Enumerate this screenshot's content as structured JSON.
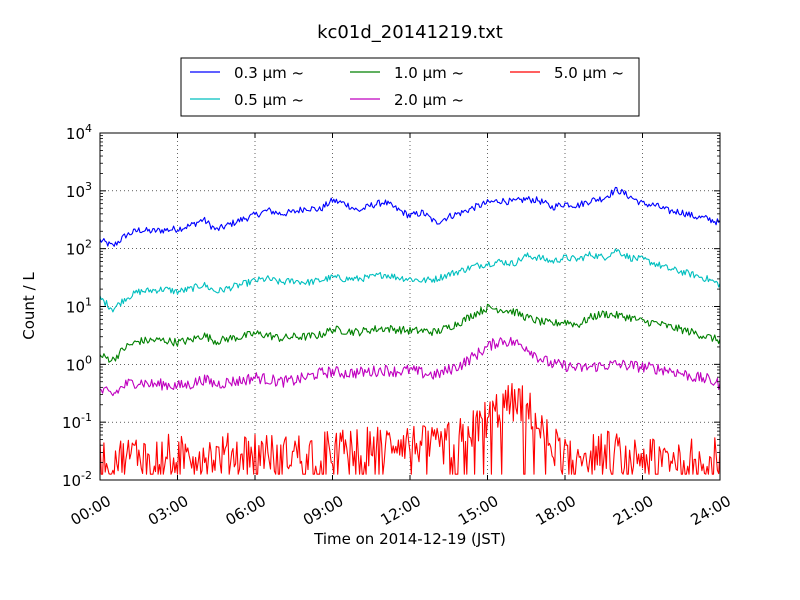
{
  "chart_data": {
    "type": "line",
    "title": "kc01d_20141219.txt",
    "xlabel": "Time on 2014-12-19 (JST)",
    "ylabel": "Count / L",
    "yscale": "log",
    "ylim": [
      0.01,
      10000
    ],
    "xlim": [
      "00:00",
      "24:00"
    ],
    "grid": true,
    "legend_position": "top-center",
    "x_ticks": [
      "00:00",
      "03:00",
      "06:00",
      "09:00",
      "12:00",
      "15:00",
      "18:00",
      "21:00",
      "24:00"
    ],
    "y_ticks": [
      {
        "base": "10",
        "exp": "-2",
        "value": 0.01
      },
      {
        "base": "10",
        "exp": "-1",
        "value": 0.1
      },
      {
        "base": "10",
        "exp": "0",
        "value": 1
      },
      {
        "base": "10",
        "exp": "1",
        "value": 10
      },
      {
        "base": "10",
        "exp": "2",
        "value": 100
      },
      {
        "base": "10",
        "exp": "3",
        "value": 1000
      },
      {
        "base": "10",
        "exp": "4",
        "value": 10000
      }
    ],
    "x_hours": [
      0,
      0.5,
      1,
      1.5,
      2,
      2.5,
      3,
      3.5,
      4,
      4.5,
      5,
      5.5,
      6,
      6.5,
      7,
      7.5,
      8,
      8.5,
      9,
      9.5,
      10,
      10.5,
      11,
      11.5,
      12,
      12.5,
      13,
      13.5,
      14,
      14.5,
      15,
      15.5,
      16,
      16.5,
      17,
      17.5,
      18,
      18.5,
      19,
      19.5,
      20,
      20.5,
      21,
      21.5,
      22,
      22.5,
      23,
      23.5,
      24
    ],
    "series": [
      {
        "name": "0.3 μm ~",
        "color": "#0000ff",
        "noise": 0.06,
        "values": [
          140,
          110,
          170,
          210,
          200,
          210,
          220,
          250,
          320,
          210,
          260,
          320,
          380,
          460,
          400,
          430,
          510,
          470,
          680,
          600,
          450,
          560,
          640,
          480,
          370,
          420,
          280,
          360,
          420,
          520,
          620,
          680,
          640,
          720,
          680,
          520,
          600,
          560,
          680,
          750,
          1050,
          800,
          600,
          560,
          450,
          430,
          360,
          330,
          280
        ]
      },
      {
        "name": "0.5 μm ~",
        "color": "#00bfbf",
        "noise": 0.06,
        "values": [
          14,
          9,
          14,
          18,
          19,
          20,
          18,
          20,
          24,
          18,
          21,
          24,
          28,
          30,
          26,
          28,
          26,
          28,
          32,
          30,
          30,
          32,
          36,
          32,
          30,
          28,
          30,
          36,
          42,
          50,
          55,
          60,
          55,
          75,
          70,
          60,
          70,
          65,
          80,
          70,
          95,
          70,
          65,
          55,
          45,
          40,
          35,
          30,
          24
        ]
      },
      {
        "name": "1.0 μm ~",
        "color": "#008000",
        "noise": 0.07,
        "values": [
          1.4,
          1.2,
          2.0,
          2.5,
          2.6,
          2.6,
          2.4,
          2.6,
          3.2,
          2.5,
          2.8,
          3.0,
          3.4,
          3.2,
          2.8,
          3.0,
          3.0,
          3.2,
          4.0,
          3.8,
          3.6,
          4.0,
          4.2,
          4.0,
          3.8,
          3.8,
          3.6,
          4.4,
          5.5,
          7.5,
          9.5,
          9.0,
          8.2,
          6.5,
          5.5,
          5.0,
          5.5,
          4.8,
          6.5,
          7.5,
          7.0,
          6.5,
          5.5,
          5.2,
          4.5,
          4.0,
          3.5,
          3.0,
          2.6
        ]
      },
      {
        "name": "2.0 μm ~",
        "color": "#bf00bf",
        "noise": 0.1,
        "values": [
          0.35,
          0.3,
          0.45,
          0.5,
          0.45,
          0.45,
          0.42,
          0.45,
          0.55,
          0.45,
          0.5,
          0.52,
          0.6,
          0.55,
          0.5,
          0.52,
          0.6,
          0.7,
          0.75,
          0.7,
          0.72,
          0.75,
          0.8,
          0.75,
          0.8,
          0.7,
          0.65,
          0.8,
          1.0,
          1.4,
          2.0,
          2.6,
          2.4,
          2.0,
          1.3,
          1.0,
          0.95,
          0.85,
          0.9,
          0.95,
          1.0,
          0.95,
          0.9,
          0.85,
          0.8,
          0.7,
          0.6,
          0.55,
          0.45
        ]
      },
      {
        "name": "5.0 μm ~",
        "color": "#ff0000",
        "noise": 0.35,
        "floor": 0.0126,
        "values": [
          0.025,
          0.025,
          0.025,
          0.03,
          0.025,
          0.03,
          0.025,
          0.03,
          0.03,
          0.025,
          0.03,
          0.03,
          0.035,
          0.03,
          0.025,
          0.03,
          0.03,
          0.03,
          0.035,
          0.035,
          0.035,
          0.04,
          0.04,
          0.05,
          0.045,
          0.04,
          0.035,
          0.045,
          0.055,
          0.08,
          0.12,
          0.18,
          0.22,
          0.2,
          0.08,
          0.04,
          0.03,
          0.03,
          0.03,
          0.035,
          0.03,
          0.03,
          0.025,
          0.03,
          0.025,
          0.025,
          0.025,
          0.025,
          0.025
        ]
      }
    ]
  }
}
